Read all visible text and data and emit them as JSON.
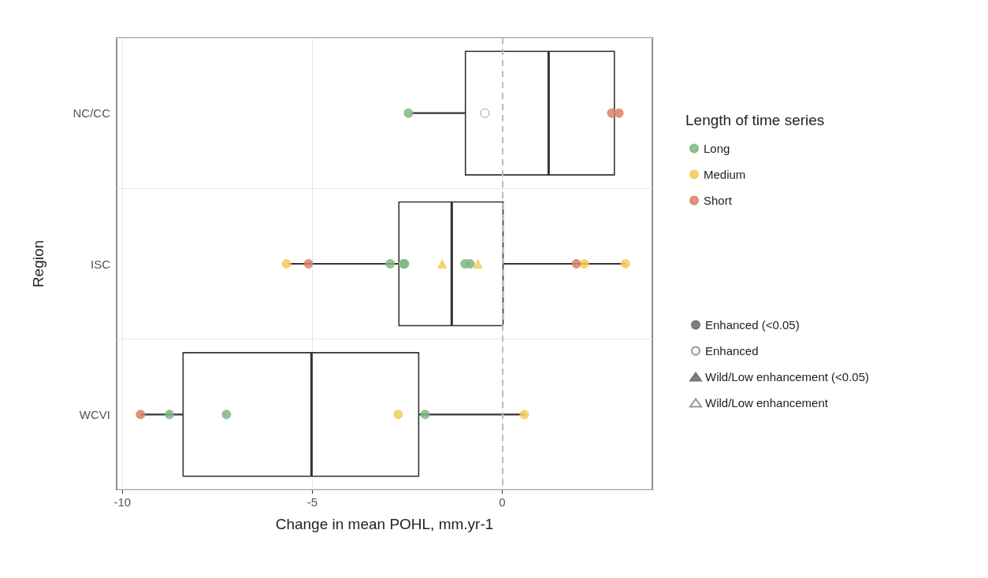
{
  "chart_data": {
    "type": "box",
    "orientation": "horizontal",
    "xlabel": "Change in mean POHL, mm.yr-1",
    "ylabel": "Region",
    "legend_title": "Length of time series",
    "categories": [
      "NC/CC",
      "ISC",
      "WCVI"
    ],
    "boxes": [
      {
        "low": -2.4,
        "q1": -0.97,
        "median": 1.22,
        "q3": 2.95,
        "high": 2.95
      },
      {
        "low": -5.64,
        "q1": -2.72,
        "median": -1.33,
        "q3": 0.02,
        "high": 3.24
      },
      {
        "low": -9.52,
        "q1": -8.4,
        "median": -5.02,
        "q3": -2.2,
        "high": 0.6
      }
    ],
    "xlim": [
      -10.15,
      3.95
    ],
    "xticks": [
      -10,
      -5,
      0
    ],
    "grid": true,
    "legend": "right",
    "ref_lines": [
      {
        "axis": "x",
        "value": 0,
        "color": "#bbbbbb",
        "line_style": "dashed"
      }
    ],
    "series": [
      {
        "type": "scatter",
        "name": "Long",
        "color": "#7fb784",
        "marker": "circle",
        "x": [
          "NC/CC",
          "ISC",
          "ISC",
          "ISC",
          "ISC",
          "ISC",
          "WCVI",
          "WCVI",
          "WCVI"
        ],
        "values": [
          -2.47,
          -2.61,
          -2.57,
          -2.95,
          -0.98,
          -0.85,
          -8.76,
          -7.26,
          -2.03
        ]
      },
      {
        "type": "scatter",
        "name": "Medium",
        "color": "#f3cd5c",
        "marker": "circle",
        "x": [
          "ISC",
          "ISC",
          "ISC",
          "WCVI",
          "WCVI"
        ],
        "values": [
          -5.68,
          2.16,
          3.24,
          -2.74,
          0.58
        ]
      },
      {
        "type": "scatter",
        "name": "Short",
        "color": "#d9826a",
        "marker": "circle",
        "x": [
          "NC/CC",
          "NC/CC",
          "ISC",
          "ISC",
          "WCVI"
        ],
        "values": [
          2.88,
          3.07,
          -5.1,
          1.95,
          -9.52
        ]
      },
      {
        "type": "scatter",
        "color": "#f3cd5c",
        "marker": "triangle",
        "x": [
          "ISC",
          "ISC"
        ],
        "values": [
          -1.58,
          -0.64
        ]
      },
      {
        "type": "scatter",
        "color": "#ffffff",
        "marker": "circle",
        "x": [
          "NC/CC"
        ],
        "values": [
          -0.46
        ]
      },
      {
        "type": "scatter",
        "name": "Enhanced (<0.05)",
        "color": "#6b6b6b",
        "marker": "circle",
        "x": [
          "NC/CC",
          "ISC",
          "WCVI"
        ],
        "values": [
          null,
          null,
          null
        ]
      },
      {
        "type": "scatter",
        "name": "Enhanced",
        "color": "#ffffff",
        "marker": "circle",
        "x": [
          "NC/CC",
          "ISC",
          "WCVI"
        ],
        "values": [
          null,
          null,
          null
        ]
      },
      {
        "type": "scatter",
        "name": "Wild/Low enhancement (<0.05)",
        "color": "#6b6b6b",
        "marker": "triangle",
        "x": [
          "NC/CC",
          "ISC",
          "WCVI"
        ],
        "values": [
          null,
          null,
          null
        ]
      },
      {
        "type": "scatter",
        "name": "Wild/Low enhancement",
        "color": "#ffffff",
        "marker": "triangle",
        "x": [
          "NC/CC",
          "ISC",
          "WCVI"
        ],
        "values": [
          null,
          null,
          null
        ]
      }
    ]
  }
}
